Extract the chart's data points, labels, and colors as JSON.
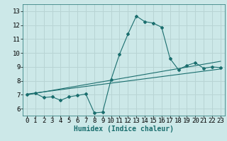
{
  "title": "",
  "xlabel": "Humidex (Indice chaleur)",
  "ylabel": "",
  "bg_color": "#cce8e8",
  "grid_color": "#b8d4d4",
  "line_color": "#1a6e6e",
  "xlim": [
    -0.5,
    23.5
  ],
  "ylim": [
    5.5,
    13.5
  ],
  "xticks": [
    0,
    1,
    2,
    3,
    4,
    5,
    6,
    7,
    8,
    9,
    10,
    11,
    12,
    13,
    14,
    15,
    16,
    17,
    18,
    19,
    20,
    21,
    22,
    23
  ],
  "yticks": [
    6,
    7,
    8,
    9,
    10,
    11,
    12,
    13
  ],
  "line1_x": [
    0,
    1,
    2,
    3,
    4,
    5,
    6,
    7,
    8,
    9,
    10,
    11,
    12,
    13,
    14,
    15,
    16,
    17,
    18,
    19,
    20,
    21,
    22,
    23
  ],
  "line1_y": [
    7.0,
    7.1,
    6.8,
    6.85,
    6.6,
    6.85,
    6.95,
    7.05,
    5.7,
    5.75,
    8.1,
    9.9,
    11.35,
    12.65,
    12.25,
    12.15,
    11.85,
    9.6,
    8.8,
    9.1,
    9.3,
    8.9,
    9.0,
    8.95
  ],
  "line2_x": [
    0,
    23
  ],
  "line2_y": [
    7.05,
    8.85
  ],
  "line3_x": [
    0,
    23
  ],
  "line3_y": [
    7.0,
    9.4
  ],
  "xlabel_fontsize": 7,
  "tick_fontsize": 6.5
}
